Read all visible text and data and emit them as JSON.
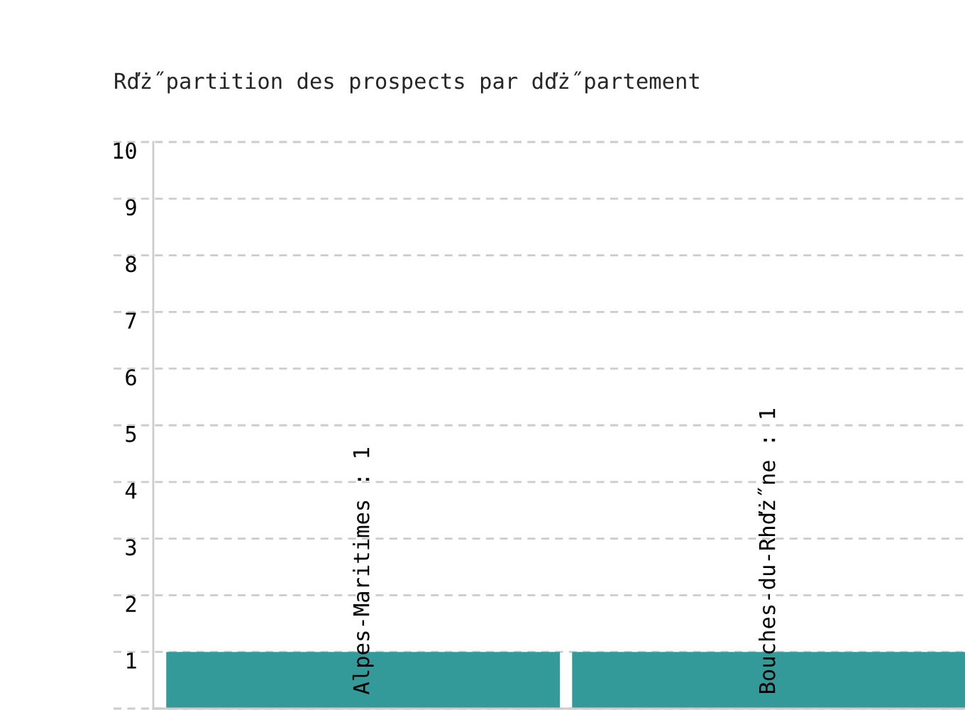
{
  "chart_data": {
    "type": "bar",
    "title": "Rďż˝partition des prospects par dďż˝partement",
    "categories": [
      null,
      null
    ],
    "values": [
      1,
      1
    ],
    "value_labels": [
      "Alpes-Maritimes : 1",
      "Bouches-du-Rhďż˝ne : 1"
    ],
    "color": "#339999",
    "ylim": [
      0,
      10
    ],
    "yticks": [
      {
        "value": 0,
        "label": null
      },
      1,
      2,
      3,
      4,
      5,
      6,
      7,
      8,
      9,
      10
    ],
    "grid": "y"
  }
}
